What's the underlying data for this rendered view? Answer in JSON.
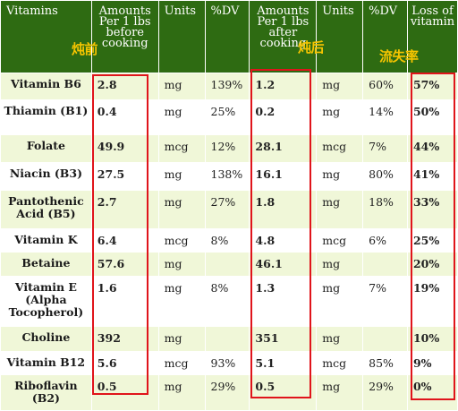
{
  "headers": [
    "Vitamins",
    "Amounts Per 1 lbs before cooking",
    "Units",
    "%DV",
    "Amounts Per 1 lbs after cooking",
    "Units",
    "%DV",
    "Loss of vitamin"
  ],
  "annotations": {
    "before": "炖前",
    "after": "炖后",
    "loss": "流失率"
  },
  "rows": [
    {
      "name": "Vitamin B6",
      "before": "2.8",
      "unit1": "mg",
      "dv1": "139%",
      "after": "1.2",
      "unit2": "mg",
      "dv2": "60%",
      "loss": "57%"
    },
    {
      "name": "Thiamin (B1)",
      "before": "0.4",
      "unit1": "mg",
      "dv1": "25%",
      "after": "0.2",
      "unit2": "mg",
      "dv2": "14%",
      "loss": "50%"
    },
    {
      "name": "Folate",
      "before": "49.9",
      "unit1": "mcg",
      "dv1": "12%",
      "after": "28.1",
      "unit2": "mcg",
      "dv2": "7%",
      "loss": "44%"
    },
    {
      "name": "Niacin (B3)",
      "before": "27.5",
      "unit1": "mg",
      "dv1": "138%",
      "after": "16.1",
      "unit2": "mg",
      "dv2": "80%",
      "loss": "41%"
    },
    {
      "name": "Pantothenic Acid (B5)",
      "before": "2.7",
      "unit1": "mg",
      "dv1": "27%",
      "after": "1.8",
      "unit2": "mg",
      "dv2": "18%",
      "loss": "33%"
    },
    {
      "name": "Vitamin K",
      "before": "6.4",
      "unit1": "mcg",
      "dv1": "8%",
      "after": "4.8",
      "unit2": "mcg",
      "dv2": "6%",
      "loss": "25%"
    },
    {
      "name": "Betaine",
      "before": "57.6",
      "unit1": "mg",
      "dv1": "",
      "after": "46.1",
      "unit2": "mg",
      "dv2": "",
      "loss": "20%"
    },
    {
      "name": "Vitamin E (Alpha Tocopherol)",
      "before": "1.6",
      "unit1": "mg",
      "dv1": "8%",
      "after": "1.3",
      "unit2": "mg",
      "dv2": "7%",
      "loss": "19%"
    },
    {
      "name": "Choline",
      "before": "392",
      "unit1": "mg",
      "dv1": "",
      "after": "351",
      "unit2": "mg",
      "dv2": "",
      "loss": "10%"
    },
    {
      "name": "Vitamin B12",
      "before": "5.6",
      "unit1": "mcg",
      "dv1": "93%",
      "after": "5.1",
      "unit2": "mcg",
      "dv2": "85%",
      "loss": "9%"
    },
    {
      "name": "Riboflavin (B2)",
      "before": "0.5",
      "unit1": "mg",
      "dv1": "29%",
      "after": "0.5",
      "unit2": "mg",
      "dv2": "29%",
      "loss": "0%"
    }
  ],
  "colors": {
    "header_bg": "#2e6b12",
    "row_tint": "#f0f7d8",
    "highlight_box": "#e0141b",
    "annotation": "#f5c400"
  }
}
